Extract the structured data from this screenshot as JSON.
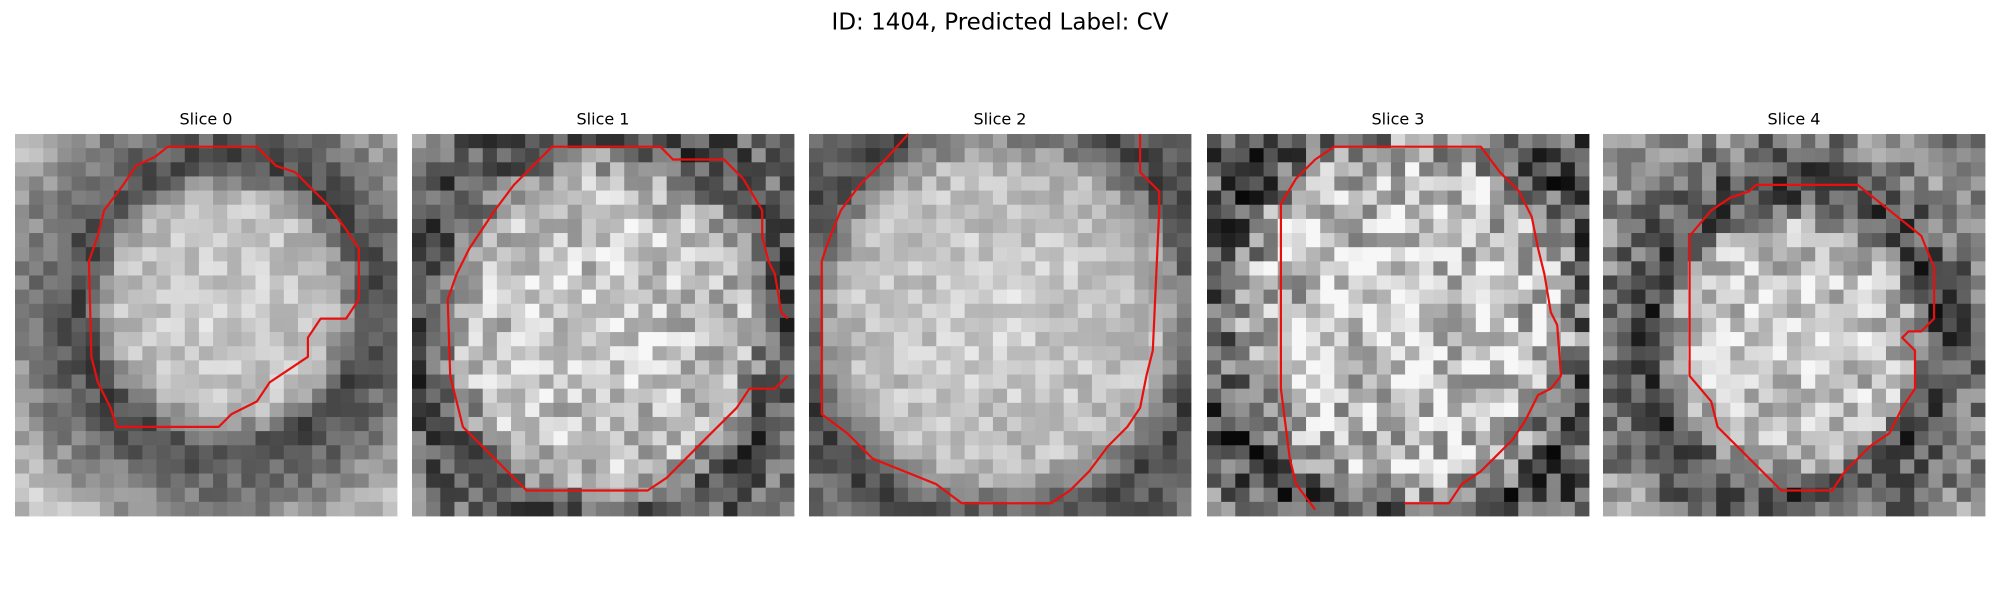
{
  "title": "ID: 1404, Predicted Label: CV",
  "panels": [
    {
      "title": "Slice 0"
    },
    {
      "title": "Slice 1"
    },
    {
      "title": "Slice 2"
    },
    {
      "title": "Slice 3"
    },
    {
      "title": "Slice 4"
    }
  ]
}
